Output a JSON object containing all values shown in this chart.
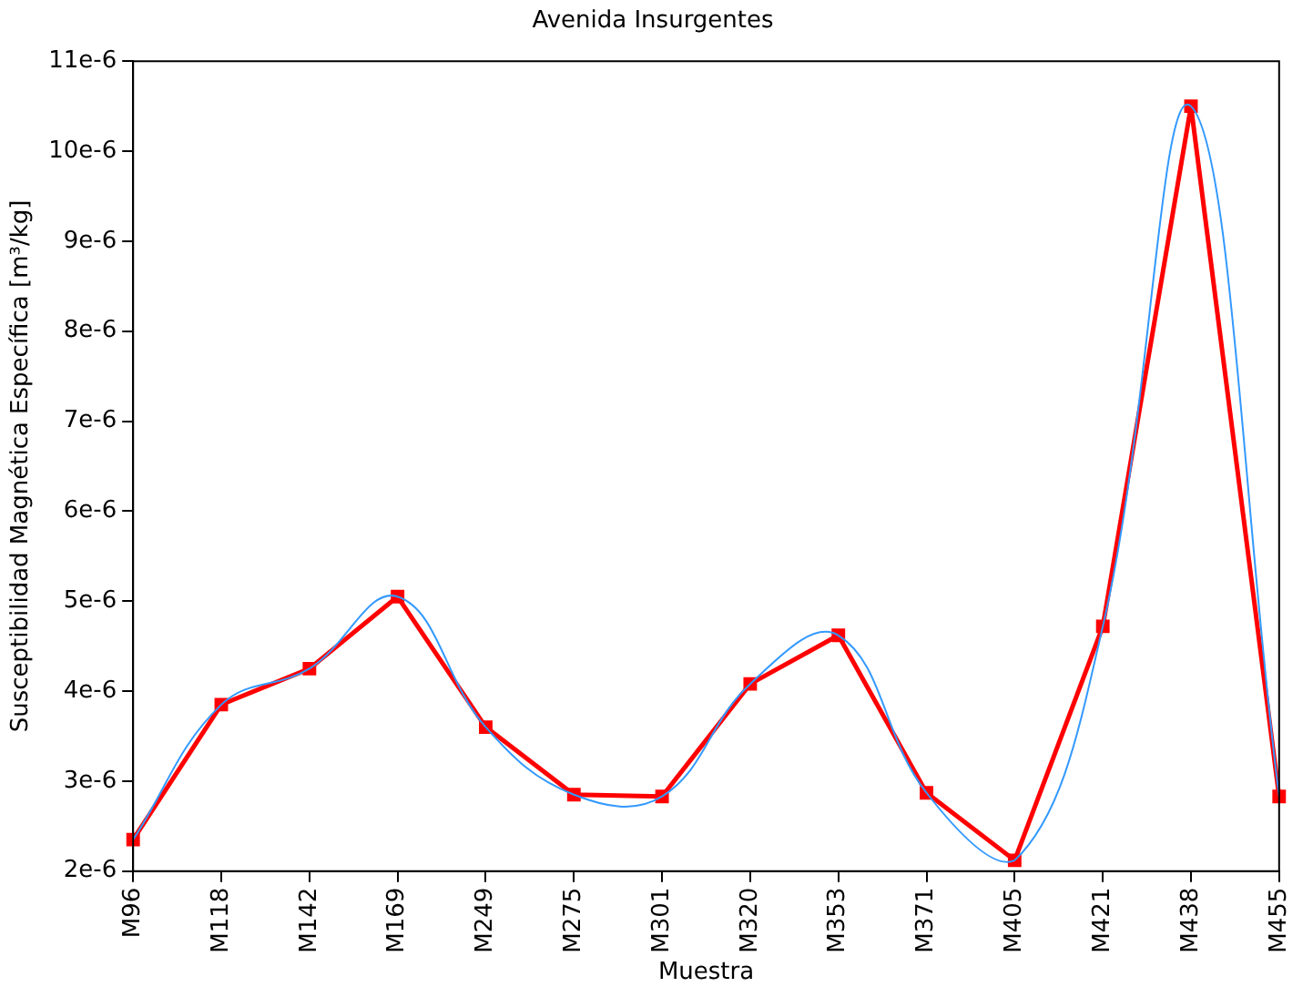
{
  "chart_data": {
    "type": "line",
    "title": "Avenida Insurgentes",
    "xlabel": "Muestra",
    "ylabel": "Susceptibilidad Magnética Específica [m³/kg]",
    "categories": [
      "M96",
      "M118",
      "M142",
      "M169",
      "M249",
      "M275",
      "M301",
      "M320",
      "M353",
      "M371",
      "M405",
      "M421",
      "M438",
      "M455"
    ],
    "series": [
      {
        "color": "#3399ff",
        "marker": "none",
        "values": [
          2.35e-06,
          3.85e-06,
          4.25e-06,
          5.05e-06,
          3.6e-06,
          2.85e-06,
          2.83e-06,
          4.08e-06,
          4.62e-06,
          2.87e-06,
          2.12e-06,
          4.72e-06,
          1.05e-05,
          2.83e-06
        ]
      },
      {
        "color": "#ff0000",
        "marker": "square",
        "values": [
          2.35e-06,
          3.85e-06,
          4.25e-06,
          5.05e-06,
          3.6e-06,
          2.85e-06,
          2.83e-06,
          4.08e-06,
          4.62e-06,
          2.87e-06,
          2.12e-06,
          4.72e-06,
          1.05e-05,
          2.83e-06
        ]
      }
    ],
    "ylim": [
      2e-06,
      1.1e-05
    ],
    "yticks": [
      {
        "value": 2e-06,
        "label": "2e-6"
      },
      {
        "value": 3e-06,
        "label": "3e-6"
      },
      {
        "value": 4e-06,
        "label": "4e-6"
      },
      {
        "value": 5e-06,
        "label": "5e-6"
      },
      {
        "value": 6e-06,
        "label": "6e-6"
      },
      {
        "value": 7e-06,
        "label": "7e-6"
      },
      {
        "value": 8e-06,
        "label": "8e-6"
      },
      {
        "value": 9e-06,
        "label": "9e-6"
      },
      {
        "value": 1e-05,
        "label": "10e-6"
      },
      {
        "value": 1.1e-05,
        "label": "11e-6"
      }
    ],
    "grid": false,
    "legend": false
  }
}
